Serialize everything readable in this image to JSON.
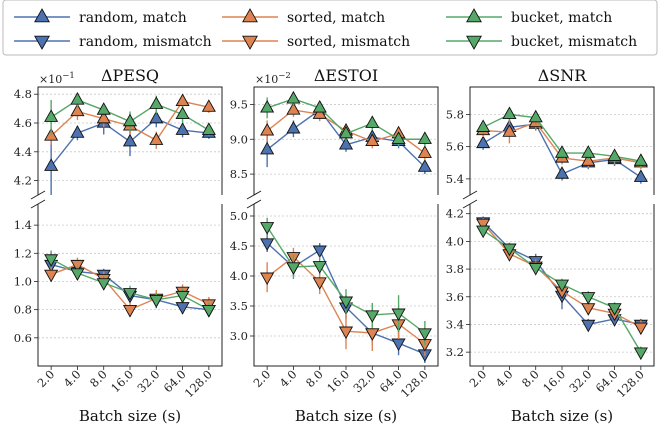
{
  "legend": [
    {
      "label": "random, match",
      "color": "#4c72b0",
      "marker": "tri-up"
    },
    {
      "label": "random, mismatch",
      "color": "#4c72b0",
      "marker": "tri-down"
    },
    {
      "label": "sorted, match",
      "color": "#dd8452",
      "marker": "tri-up"
    },
    {
      "label": "sorted, mismatch",
      "color": "#dd8452",
      "marker": "tri-down"
    },
    {
      "label": "bucket, match",
      "color": "#55a868",
      "marker": "tri-up"
    },
    {
      "label": "bucket, mismatch",
      "color": "#55a868",
      "marker": "tri-down"
    }
  ],
  "chart_data": [
    {
      "type": "line",
      "title": "ΔPESQ",
      "xlabel": "Batch size (s)",
      "categories": [
        "2.0",
        "4.0",
        "8.0",
        "16.0",
        "32.0",
        "64.0",
        "128.0"
      ],
      "upper": {
        "exponent": "×10",
        "exponent_power": "−1",
        "ylim": [
          4.1,
          4.85
        ],
        "yticks": [
          "4.2",
          "4.4",
          "4.6",
          "4.8"
        ],
        "ytick_values": [
          4.2,
          4.4,
          4.6,
          4.8
        ],
        "series": [
          {
            "name": "random, match",
            "color": "#4c72b0",
            "marker": "up",
            "values": [
              4.3,
              4.53,
              4.6,
              4.47,
              4.63,
              4.55,
              4.53
            ],
            "err": [
              0.2,
              0.05,
              0.08,
              0.1,
              0.06,
              0.05,
              0.04
            ]
          },
          {
            "name": "sorted, match",
            "color": "#dd8452",
            "marker": "up",
            "values": [
              4.51,
              4.68,
              4.63,
              4.58,
              4.48,
              4.75,
              4.71
            ],
            "err": [
              0.06,
              0.06,
              0.06,
              0.06,
              0.06,
              0.05,
              0.04
            ]
          },
          {
            "name": "bucket, match",
            "color": "#55a868",
            "marker": "up",
            "values": [
              4.64,
              4.76,
              4.69,
              4.61,
              4.73,
              4.66,
              4.55
            ],
            "err": [
              0.12,
              0.05,
              0.04,
              0.07,
              0.06,
              0.06,
              0.04
            ]
          }
        ]
      },
      "lower": {
        "ylim": [
          0.4,
          1.55
        ],
        "yticks": [
          "0.6",
          "0.8",
          "1.0",
          "1.2",
          "1.4"
        ],
        "ytick_values": [
          0.6,
          0.8,
          1.0,
          1.2,
          1.4
        ],
        "series": [
          {
            "name": "random, mismatch",
            "color": "#4c72b0",
            "marker": "down",
            "values": [
              1.12,
              1.07,
              1.05,
              0.9,
              0.87,
              0.82,
              0.8
            ],
            "err": [
              0.05,
              0.04,
              0.04,
              0.05,
              0.06,
              0.05,
              0.05
            ]
          },
          {
            "name": "sorted, mismatch",
            "color": "#dd8452",
            "marker": "down",
            "values": [
              1.05,
              1.12,
              1.02,
              0.8,
              0.88,
              0.93,
              0.84
            ],
            "err": [
              0.05,
              0.05,
              0.05,
              0.05,
              0.06,
              0.05,
              0.05
            ]
          },
          {
            "name": "bucket, mismatch",
            "color": "#55a868",
            "marker": "down",
            "values": [
              1.16,
              1.06,
              0.99,
              0.92,
              0.87,
              0.9,
              0.8
            ],
            "err": [
              0.06,
              0.05,
              0.05,
              0.05,
              0.05,
              0.05,
              0.05
            ]
          }
        ]
      }
    },
    {
      "type": "line",
      "title": "ΔESTOI",
      "xlabel": "Batch size (s)",
      "categories": [
        "2.0",
        "4.0",
        "8.0",
        "16.0",
        "32.0",
        "64.0",
        "128.0"
      ],
      "upper": {
        "exponent": "×10",
        "exponent_power": "−2",
        "ylim": [
          8.2,
          9.75
        ],
        "yticks": [
          "8.5",
          "9.0",
          "9.5"
        ],
        "ytick_values": [
          8.5,
          9.0,
          9.5
        ],
        "series": [
          {
            "name": "random, match",
            "color": "#4c72b0",
            "marker": "up",
            "values": [
              8.85,
              9.15,
              9.42,
              8.92,
              9.03,
              8.97,
              8.6
            ],
            "err": [
              0.25,
              0.12,
              0.1,
              0.1,
              0.1,
              0.1,
              0.1
            ]
          },
          {
            "name": "sorted, match",
            "color": "#dd8452",
            "marker": "up",
            "values": [
              9.12,
              9.42,
              9.36,
              9.12,
              8.97,
              9.08,
              8.8
            ],
            "err": [
              0.15,
              0.1,
              0.1,
              0.1,
              0.1,
              0.1,
              0.1
            ]
          },
          {
            "name": "bucket, match",
            "color": "#55a868",
            "marker": "up",
            "values": [
              9.45,
              9.58,
              9.45,
              9.08,
              9.23,
              9.0,
              9.0
            ],
            "err": [
              0.15,
              0.1,
              0.08,
              0.1,
              0.1,
              0.1,
              0.1
            ]
          }
        ]
      },
      "lower": {
        "ylim": [
          2.5,
          5.2
        ],
        "yticks": [
          "3.0",
          "3.5",
          "4.0",
          "4.5",
          "5.0"
        ],
        "ytick_values": [
          3.0,
          3.5,
          4.0,
          4.5,
          5.0
        ],
        "series": [
          {
            "name": "random, mismatch",
            "color": "#4c72b0",
            "marker": "down",
            "values": [
              4.55,
              4.15,
              4.43,
              3.48,
              3.05,
              2.88,
              2.7
            ],
            "err": [
              0.15,
              0.15,
              0.12,
              0.2,
              0.2,
              0.2,
              0.15
            ]
          },
          {
            "name": "sorted, mismatch",
            "color": "#dd8452",
            "marker": "down",
            "values": [
              3.98,
              4.32,
              3.9,
              3.08,
              3.05,
              3.2,
              2.87
            ],
            "err": [
              0.25,
              0.15,
              0.2,
              0.3,
              0.3,
              0.25,
              0.2
            ]
          },
          {
            "name": "bucket, mismatch",
            "color": "#55a868",
            "marker": "down",
            "values": [
              4.82,
              4.15,
              4.17,
              3.58,
              3.35,
              3.38,
              3.05
            ],
            "err": [
              0.15,
              0.2,
              0.15,
              0.2,
              0.2,
              0.3,
              0.2
            ]
          }
        ]
      }
    },
    {
      "type": "line",
      "title": "ΔSNR",
      "xlabel": "Batch size (s)",
      "categories": [
        "2.0",
        "4.0",
        "8.0",
        "16.0",
        "32.0",
        "64.0",
        "128.0"
      ],
      "upper": {
        "ylim": [
          5.3,
          5.97
        ],
        "yticks": [
          "5.4",
          "5.6",
          "5.8"
        ],
        "ytick_values": [
          5.4,
          5.6,
          5.8
        ],
        "series": [
          {
            "name": "random, match",
            "color": "#4c72b0",
            "marker": "up",
            "values": [
              5.62,
              5.72,
              5.74,
              5.43,
              5.5,
              5.52,
              5.41
            ],
            "err": [
              0.04,
              0.05,
              0.04,
              0.04,
              0.04,
              0.04,
              0.04
            ]
          },
          {
            "name": "sorted, match",
            "color": "#dd8452",
            "marker": "up",
            "values": [
              5.7,
              5.69,
              5.75,
              5.53,
              5.51,
              5.53,
              5.5
            ],
            "err": [
              0.04,
              0.07,
              0.04,
              0.04,
              0.04,
              0.04,
              0.04
            ]
          },
          {
            "name": "bucket, match",
            "color": "#55a868",
            "marker": "up",
            "values": [
              5.72,
              5.8,
              5.78,
              5.56,
              5.56,
              5.54,
              5.51
            ],
            "err": [
              0.04,
              0.04,
              0.04,
              0.04,
              0.04,
              0.04,
              0.04
            ]
          }
        ]
      },
      "lower": {
        "ylim": [
          3.1,
          4.27
        ],
        "yticks": [
          "3.2",
          "3.4",
          "3.6",
          "3.8",
          "4.0",
          "4.2"
        ],
        "ytick_values": [
          3.2,
          3.4,
          3.6,
          3.8,
          4.0,
          4.2
        ],
        "series": [
          {
            "name": "random, mismatch",
            "color": "#4c72b0",
            "marker": "down",
            "values": [
              4.14,
              3.95,
              3.86,
              3.61,
              3.4,
              3.44,
              3.4
            ],
            "err": [
              0.04,
              0.04,
              0.05,
              0.1,
              0.04,
              0.05,
              0.04
            ]
          },
          {
            "name": "sorted, mismatch",
            "color": "#dd8452",
            "marker": "down",
            "values": [
              4.13,
              3.91,
              3.82,
              3.64,
              3.52,
              3.48,
              3.38
            ],
            "err": [
              0.04,
              0.04,
              0.05,
              0.05,
              0.05,
              0.05,
              0.05
            ]
          },
          {
            "name": "bucket, mismatch",
            "color": "#55a868",
            "marker": "down",
            "values": [
              4.08,
              3.95,
              3.81,
              3.69,
              3.6,
              3.52,
              3.2
            ],
            "err": [
              0.04,
              0.04,
              0.04,
              0.04,
              0.04,
              0.04,
              0.04
            ]
          }
        ]
      }
    }
  ]
}
